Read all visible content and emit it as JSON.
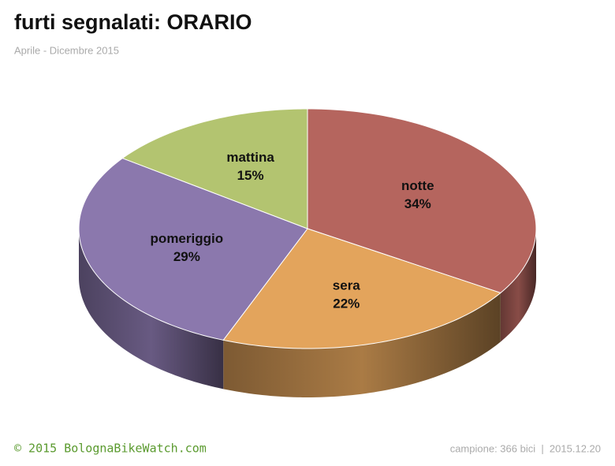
{
  "chart_data": {
    "type": "pie",
    "title": "furti segnalati:  ORARIO",
    "subtitle": "Aprile - Dicembre 2015",
    "categories": [
      "notte",
      "sera",
      "pomeriggio",
      "mattina"
    ],
    "values": [
      34,
      22,
      29,
      15
    ],
    "value_labels": [
      "34%",
      "22%",
      "29%",
      "15%"
    ],
    "colors": [
      "#b5655e",
      "#e3a45c",
      "#8b78ad",
      "#b3c470"
    ]
  },
  "footer": {
    "left": "© 2015  BolognaBikeWatch.com",
    "right": "campione: 366 bici  |  2015.12.20"
  }
}
